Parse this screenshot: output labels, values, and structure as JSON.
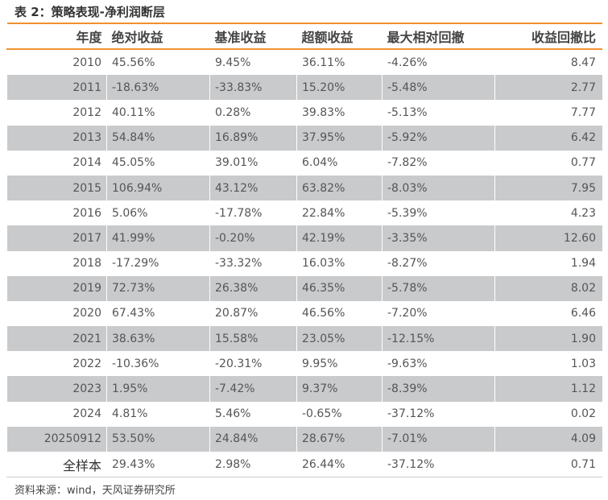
{
  "title": "表 2：策略表现-净利润断层",
  "headers": [
    "年度",
    "绝对收益",
    "基准收益",
    "超额收益",
    "最大相对回撤",
    "收益回撤比"
  ],
  "rows": [
    [
      "2010",
      "45.56%",
      "9.45%",
      "36.11%",
      "-4.26%",
      "8.47"
    ],
    [
      "2011",
      "-18.63%",
      "-33.83%",
      "15.20%",
      "-5.48%",
      "2.77"
    ],
    [
      "2012",
      "40.11%",
      "0.28%",
      "39.83%",
      "-5.13%",
      "7.77"
    ],
    [
      "2013",
      "54.84%",
      "16.89%",
      "37.95%",
      "-5.92%",
      "6.42"
    ],
    [
      "2014",
      "45.05%",
      "39.01%",
      "6.04%",
      "-7.82%",
      "0.77"
    ],
    [
      "2015",
      "106.94%",
      "43.12%",
      "63.82%",
      "-8.03%",
      "7.95"
    ],
    [
      "2016",
      "5.06%",
      "-17.78%",
      "22.84%",
      "-5.39%",
      "4.23"
    ],
    [
      "2017",
      "41.99%",
      "-0.20%",
      "42.19%",
      "-3.35%",
      "12.60"
    ],
    [
      "2018",
      "-17.29%",
      "-33.32%",
      "16.03%",
      "-8.27%",
      "1.94"
    ],
    [
      "2019",
      "72.73%",
      "26.38%",
      "46.35%",
      "-5.78%",
      "8.02"
    ],
    [
      "2020",
      "67.43%",
      "20.87%",
      "46.56%",
      "-7.20%",
      "6.46"
    ],
    [
      "2021",
      "38.63%",
      "15.58%",
      "23.05%",
      "-12.15%",
      "1.90"
    ],
    [
      "2022",
      "-10.36%",
      "-20.31%",
      "9.95%",
      "-9.63%",
      "1.03"
    ],
    [
      "2023",
      "1.95%",
      "-7.42%",
      "9.37%",
      "-8.39%",
      "1.12"
    ],
    [
      "2024",
      "4.81%",
      "5.46%",
      "-0.65%",
      "-37.12%",
      "0.02"
    ],
    [
      "20250912",
      "53.50%",
      "24.84%",
      "28.67%",
      "-7.01%",
      "4.09"
    ],
    [
      "全样本",
      "29.43%",
      "2.98%",
      "26.44%",
      "-37.12%",
      "0.71"
    ]
  ],
  "source": "资料来源：wind，天风证券研究所"
}
